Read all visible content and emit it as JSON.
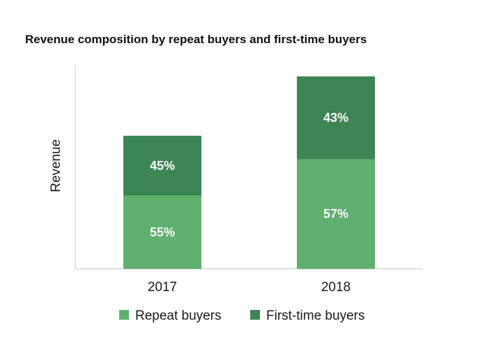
{
  "chart_data": {
    "type": "bar",
    "stacked": true,
    "title": "Revenue composition by repeat buyers and first-time buyers",
    "xlabel": "",
    "ylabel": "Revenue",
    "categories": [
      "2017",
      "2018"
    ],
    "totals_relative": [
      0.65,
      0.94
    ],
    "series": [
      {
        "name": "Repeat buyers",
        "values": [
          55,
          57
        ],
        "labels": [
          "55%",
          "57%"
        ],
        "color": "#5fb06f"
      },
      {
        "name": "First-time buyers",
        "values": [
          45,
          43
        ],
        "labels": [
          "45%",
          "43%"
        ],
        "color": "#3d8553"
      }
    ],
    "grid": false,
    "legend": "bottom"
  }
}
